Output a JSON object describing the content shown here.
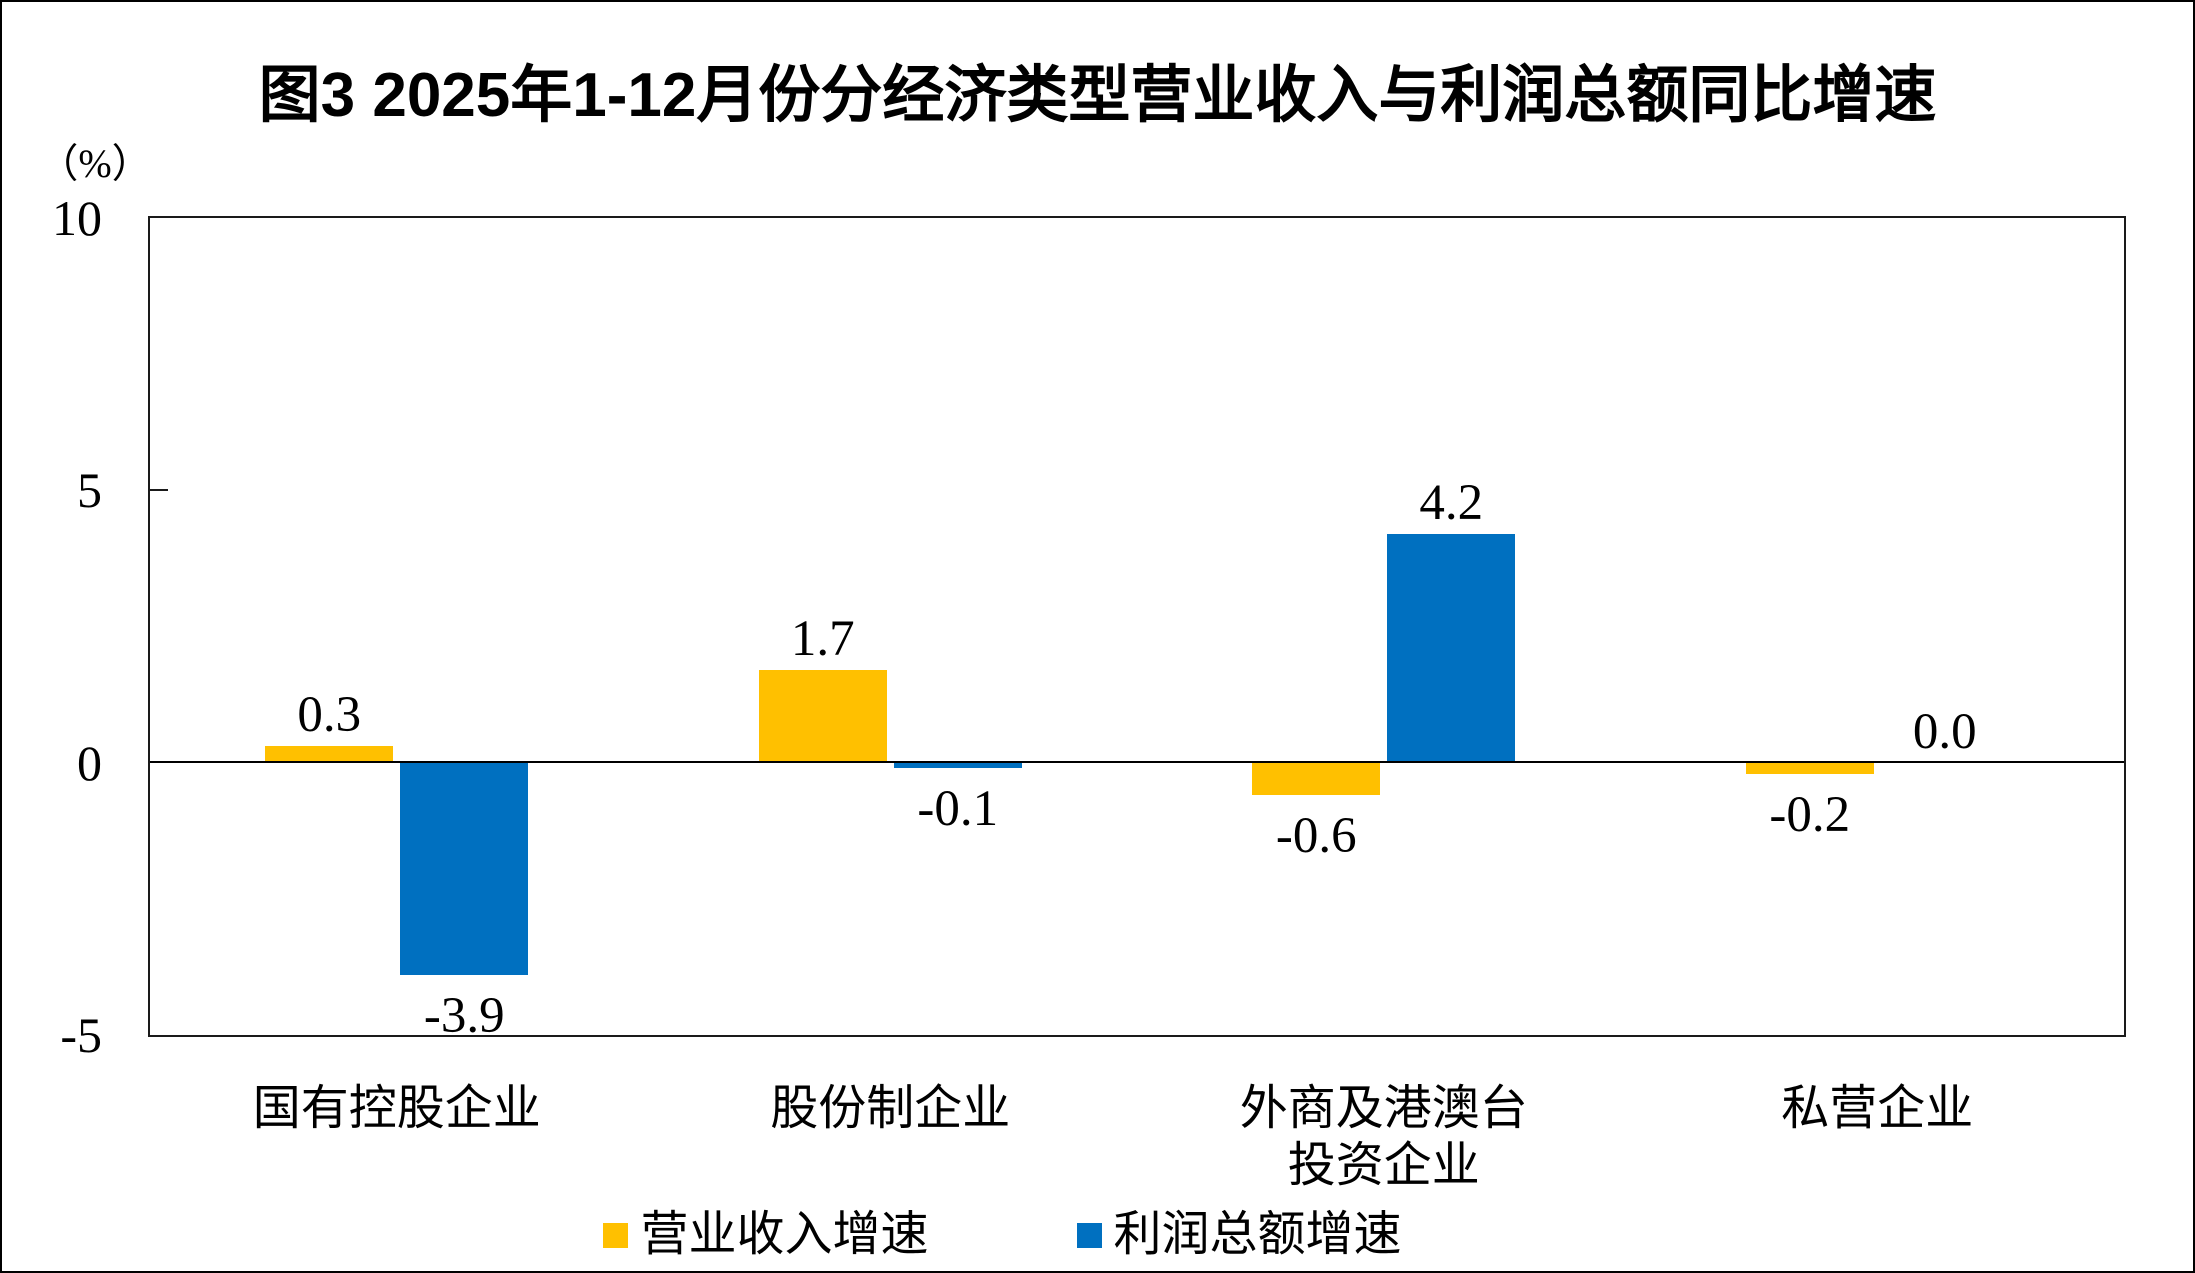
{
  "chart_data": {
    "type": "bar",
    "title": "图3 2025年1-12月份分经济类型营业收入与利润总额同比增速",
    "unit_label": "（%）",
    "categories": [
      "国有控股企业",
      "股份制企业",
      "外商及港澳台\n投资企业",
      "私营企业"
    ],
    "series": [
      {
        "name": "营业收入增速",
        "color": "#FFC000",
        "values": [
          0.3,
          1.7,
          -0.6,
          -0.2
        ]
      },
      {
        "name": "利润总额增速",
        "color": "#0070C0",
        "values": [
          -3.9,
          -0.1,
          4.2,
          0.0
        ]
      }
    ],
    "ylim": [
      -5,
      10
    ],
    "yticks": [
      10,
      5,
      0,
      -5
    ],
    "ytick_interval": 5,
    "value_label_decimals": 1,
    "grid": false,
    "legend_position": "bottom",
    "axis_color": "#000000",
    "background_color": "#ffffff"
  }
}
